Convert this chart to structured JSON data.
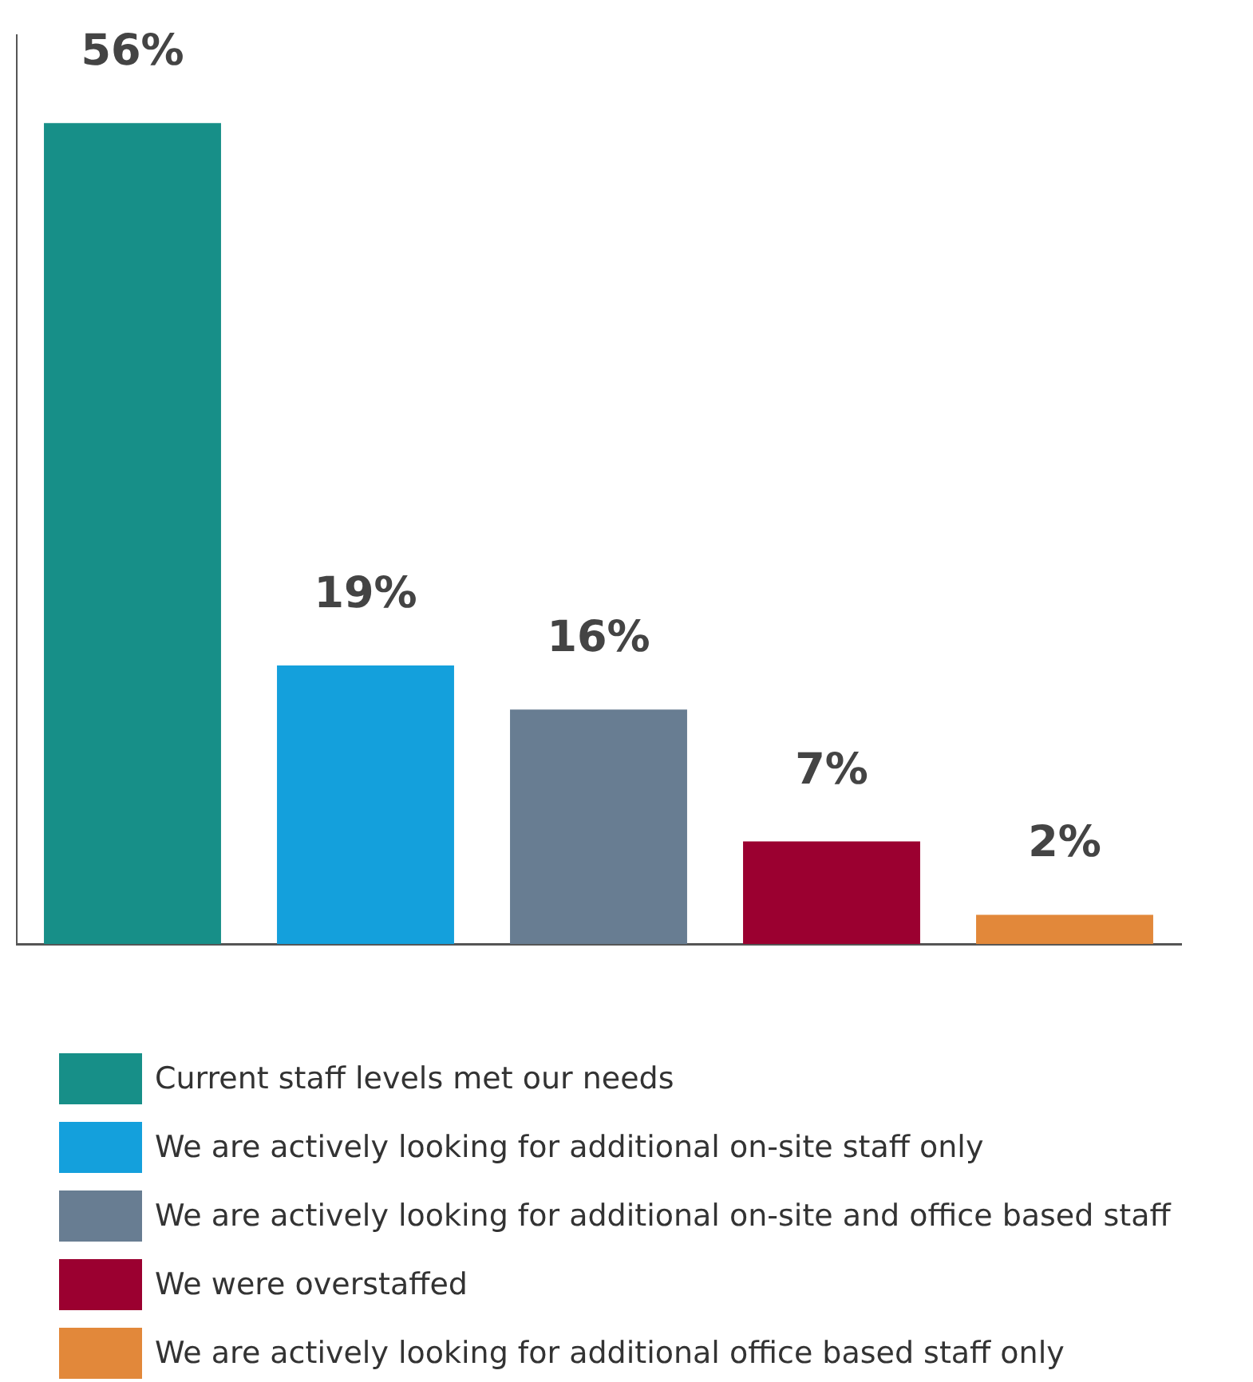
{
  "chart_data": {
    "type": "bar",
    "categories": [
      null,
      null,
      null,
      null,
      null
    ],
    "stacked": true,
    "series": [
      {
        "name": "Current staff levels met our needs",
        "color": "#178f88",
        "values": [
          56,
          null,
          null,
          null,
          null
        ],
        "value_labels": [
          "56%",
          null,
          null,
          null,
          null
        ]
      },
      {
        "name": "We are actively looking for additional on-site staff only",
        "color": "#14a0dc",
        "values": [
          null,
          19,
          null,
          null,
          null
        ],
        "value_labels": [
          null,
          "19%",
          null,
          null,
          null
        ]
      },
      {
        "name": "We are actively looking for additional on-site and office based staff",
        "color": "#687d92",
        "values": [
          null,
          null,
          16,
          null,
          null
        ],
        "value_labels": [
          null,
          null,
          "16%",
          null,
          null
        ]
      },
      {
        "name": "We were overstaffed",
        "color": "#9b0030",
        "values": [
          null,
          null,
          null,
          7,
          null
        ],
        "value_labels": [
          null,
          null,
          null,
          "7%",
          null
        ]
      },
      {
        "name": "We are actively looking for additional office based staff only",
        "color": "#e2883a",
        "values": [
          null,
          null,
          null,
          null,
          2
        ],
        "value_labels": [
          null,
          null,
          null,
          null,
          "2%"
        ]
      }
    ],
    "ylim": [
      0,
      62
    ],
    "grid": false,
    "legend": "bottom"
  }
}
